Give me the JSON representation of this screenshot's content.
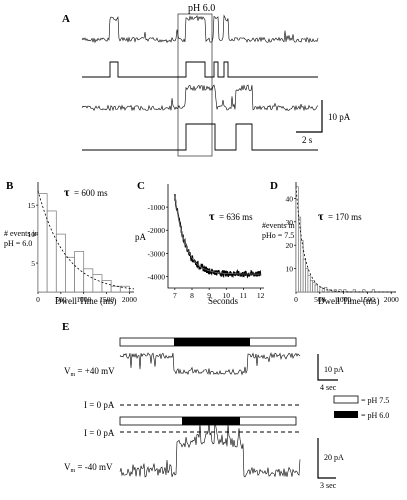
{
  "panel_a": {
    "letter": "A",
    "box_label": "pH 6.0",
    "scale_y": "10 pA",
    "scale_x": "2 s"
  },
  "chart_data": [
    {
      "type": "bar",
      "panel": "B",
      "letter": "B",
      "tau": "= 600 ms",
      "side_text_lines": [
        "# events in",
        "pH = 6.0"
      ],
      "xlabel": "Dwell Time (ms)",
      "ylabel": "",
      "xlim": [
        0,
        2100
      ],
      "ylim": [
        0,
        19
      ],
      "x_ticks": [
        "0",
        "500",
        "1000",
        "1500",
        "2000"
      ],
      "y_ticks": [
        "5",
        "10",
        "15"
      ],
      "bin_width": 200,
      "bin_starts": [
        0,
        200,
        400,
        600,
        800,
        1000,
        1200,
        1400,
        1600,
        1800
      ],
      "values": [
        17,
        14,
        10,
        6,
        7,
        4,
        3,
        2,
        1,
        1
      ],
      "fit_tau_ms": 600,
      "fit_amplitude": 17.5
    },
    {
      "type": "line",
      "panel": "C",
      "letter": "C",
      "tau": "= 636 ms",
      "xlabel": "Seconds",
      "ylabel": "pA",
      "xlim": [
        6.6,
        12.2
      ],
      "ylim": [
        -4500,
        0
      ],
      "x_ticks": [
        "7",
        "8",
        "9",
        "10",
        "11",
        "12"
      ],
      "y_ticks": [
        "-1000",
        "-2000",
        "-3000",
        "-4000"
      ],
      "fit_tau_ms": 636,
      "start_x": 7,
      "start_y": -500,
      "plateau_y": -3900
    },
    {
      "type": "bar",
      "panel": "D",
      "letter": "D",
      "tau": "= 170 ms",
      "side_text_lines": [
        "#events in",
        "pHo = 7.5"
      ],
      "xlabel": "Dwell Time (ms)",
      "ylabel": "",
      "xlim": [
        0,
        2100
      ],
      "ylim": [
        0,
        47
      ],
      "x_ticks": [
        "0",
        "500",
        "1000",
        "1500",
        "2000"
      ],
      "y_ticks": [
        "10",
        "20",
        "30",
        "40"
      ],
      "bin_width": 50,
      "bin_starts": [
        0,
        50,
        100,
        150,
        200,
        250,
        300,
        350,
        400,
        500,
        600,
        700,
        800,
        900,
        1000,
        1200,
        1400,
        1600
      ],
      "values": [
        45,
        32,
        22,
        14,
        10,
        7,
        5,
        4,
        3,
        2,
        2,
        1,
        1,
        1,
        1,
        1,
        1,
        1
      ],
      "fit_tau_ms": 170,
      "fit_amplitude": 45
    }
  ],
  "panel_e": {
    "letter": "E",
    "trace1_label_main": "V",
    "trace1_label_sub": "m",
    "trace1_label_rest": " = +40 mV",
    "trace2_label_main": "V",
    "trace2_label_sub": "m",
    "trace2_label_rest": " = -40 mV",
    "zero_label": "I = 0 pA",
    "scale1_y": "10 pA",
    "scale1_x": "4 sec",
    "scale2_y": "20 pA",
    "scale2_x": "3 sec",
    "legend_open": "= pH 7.5",
    "legend_filled": "= pH 6.0"
  }
}
